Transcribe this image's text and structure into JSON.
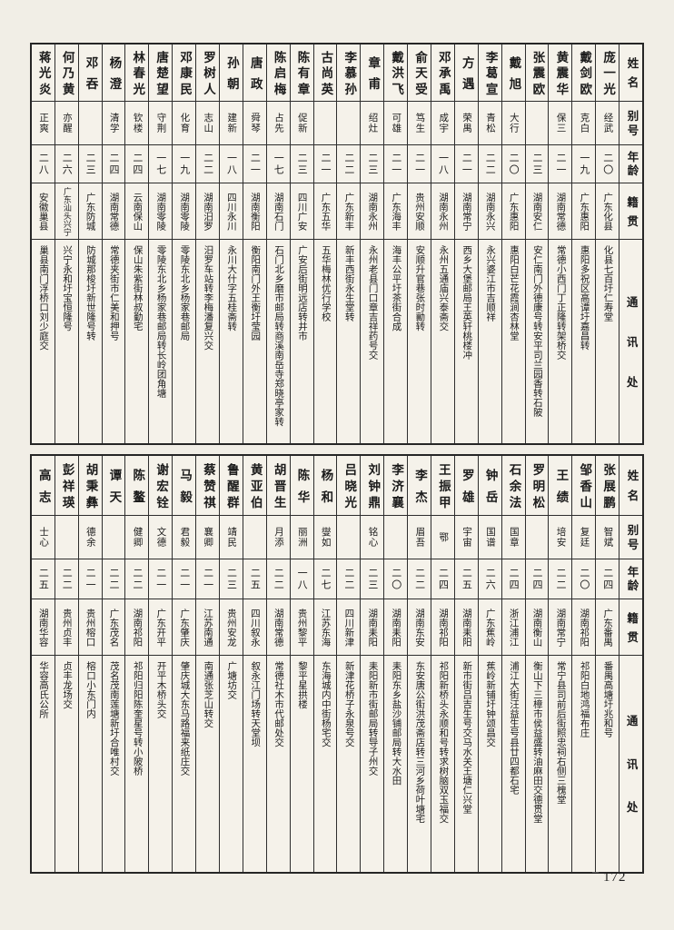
{
  "page": {
    "number": "172"
  },
  "headers": {
    "name": "姓名",
    "alias": "别号",
    "age": "年龄",
    "origin": "籍贯",
    "address": "通讯处"
  },
  "tables": [
    {
      "people": [
        {
          "name": "庞一光",
          "alias": "经武",
          "age": "二〇",
          "origin": "广东化县",
          "address": "化县七百圩仁寿堂"
        },
        {
          "name": "戴剑欧",
          "alias": "克白",
          "age": "一九",
          "origin": "广东惠阳",
          "address": "惠阳多祝区高谭圩嘉昌转"
        },
        {
          "name": "黄震华",
          "alias": "保三",
          "age": "二一",
          "origin": "湖南常德",
          "address": "常德小西门丁正隆转架桥交"
        },
        {
          "name": "张震欧",
          "alias": "",
          "age": "二三",
          "origin": "湖南安仁",
          "address": "安仁南门外德康号转安平司兰园香转石陂"
        },
        {
          "name": "戴旭",
          "alias": "大行",
          "age": "二〇",
          "origin": "广东惠阳",
          "address": "惠阳白芒花霞涧杏林堂"
        },
        {
          "name": "李葛宣",
          "alias": "青松",
          "age": "二二",
          "origin": "湖南永兴",
          "address": "永兴婆江市吉顺祥"
        },
        {
          "name": "方遇",
          "alias": "荣禺",
          "age": "二一",
          "origin": "湖南常宁",
          "address": "西乡大堡邮局王英轩桃楼冲"
        },
        {
          "name": "邓承禹",
          "alias": "成宇",
          "age": "一八",
          "origin": "湖南永州",
          "address": "永州五通庙兴泰斋交"
        },
        {
          "name": "俞天受",
          "alias": "笃生",
          "age": "二一",
          "origin": "贵州安顺",
          "address": "安顺升官巷张时勷转"
        },
        {
          "name": "戴洪飞",
          "alias": "可雄",
          "age": "二一",
          "origin": "广东海丰",
          "address": "海丰公平圩茶街合成"
        },
        {
          "name": "章甫",
          "alias": "绍灶",
          "age": "二三",
          "origin": "湖南永州",
          "address": "永州老县门口章吉祥药号交"
        },
        {
          "name": "李慕孙",
          "alias": "",
          "age": "二二",
          "origin": "广东新丰",
          "address": "新丰西街永生堂转"
        },
        {
          "name": "古尚英",
          "alias": "",
          "age": "二一",
          "origin": "广东五华",
          "address": "五华梅林优行学校"
        },
        {
          "name": "陈有章",
          "alias": "促新",
          "age": "二三",
          "origin": "四川广安",
          "address": "广安后街明远店转井市"
        },
        {
          "name": "陈启梅",
          "alias": "占先",
          "age": "一七",
          "origin": "湖南石门",
          "address": "石门北乡磨市邮局转商溪南岳寺郑晓亭家转"
        },
        {
          "name": "唐政",
          "alias": "舜琴",
          "age": "二一",
          "origin": "湖南衡阳",
          "address": "衡阳南门外王衡圩莹园"
        },
        {
          "name": "孙朝",
          "alias": "建新",
          "age": "一八",
          "origin": "四川永川",
          "address": "永川大什字五桂斋转"
        },
        {
          "name": "罗树人",
          "alias": "志山",
          "age": "二二",
          "origin": "湖南汨罗",
          "address": "汨罗车站转李梅潘复兴交"
        },
        {
          "name": "邓康民",
          "alias": "化育",
          "age": "一九",
          "origin": "湖南零陵",
          "address": "零陵东北乡杨家巷邮局"
        },
        {
          "name": "唐楚望",
          "alias": "守荆",
          "age": "一七",
          "origin": "湖南零陵",
          "address": "零陵东北乡杨家巷邮局转长岭团角塘"
        },
        {
          "name": "林春光",
          "alias": "钦楼",
          "age": "二四",
          "origin": "云南保山",
          "address": "保山朱紫街林叔勤宅"
        },
        {
          "name": "杨澄",
          "alias": "清学",
          "age": "二四",
          "origin": "湖南常德",
          "address": "常德夹街市仁美和押号"
        },
        {
          "name": "邓吞",
          "alias": "",
          "age": "二三",
          "origin": "广东防城",
          "address": "防城那梭圩新世隆号转"
        },
        {
          "name": "何乃黄",
          "alias": "亦醒",
          "age": "二六",
          "origin": "广东汕头兴宁",
          "address": "兴宁永和圩宝恒隆号"
        },
        {
          "name": "蒋光炎",
          "alias": "正爽",
          "age": "二八",
          "origin": "安徽巢县",
          "address": "巢县南门浮桥口刘少庭交"
        }
      ]
    },
    {
      "people": [
        {
          "name": "张展鹏",
          "alias": "智斌",
          "age": "二四",
          "origin": "广东番禺",
          "address": "番禺高塘圩兆和号"
        },
        {
          "name": "邹香山",
          "alias": "复廷",
          "age": "二〇",
          "origin": "湖南祁阳",
          "address": "祁阳白地鸿福布庄"
        },
        {
          "name": "王绩",
          "alias": "培安",
          "age": "二二",
          "origin": "湖南常宁",
          "address": "常宁县司前后街照忠祠右侧三槐堂"
        },
        {
          "name": "罗明松",
          "alias": "",
          "age": "二四",
          "origin": "湖南衡山",
          "address": "衡山下三樟市侯益盛转油麻田交德贯堂"
        },
        {
          "name": "石余法",
          "alias": "国章",
          "age": "二四",
          "origin": "浙江浦江",
          "address": "浦江大街汪益生号县廿四都石宅"
        },
        {
          "name": "钟岳",
          "alias": "国谱",
          "age": "二六",
          "origin": "广东蕉岭",
          "address": "蕉岭新铺圩钟颂昌交"
        },
        {
          "name": "罗雄",
          "alias": "宇宙",
          "age": "二五",
          "origin": "湖南耒阳",
          "address": "新市街吕吉生号交马水关王塘仁兴堂"
        },
        {
          "name": "王振甲",
          "alias": "鄂",
          "age": "二四",
          "origin": "湖南祁阳",
          "address": "祁阳新桥头永顺和号转求树脑双玉福交"
        },
        {
          "name": "李杰",
          "alias": "眉吾",
          "age": "二二",
          "origin": "湖南东安",
          "address": "东安唐公街洪茂斋店转三河乡荷叶塘宅"
        },
        {
          "name": "李济襄",
          "alias": "",
          "age": "二〇",
          "origin": "湖南耒阳",
          "address": "耒阳东乡盐沙铺邮局转大水田"
        },
        {
          "name": "刘钟鼎",
          "alias": "铭心",
          "age": "二三",
          "origin": "湖南耒阳",
          "address": "耒阳新市街邮局转导子州交"
        },
        {
          "name": "吕晓光",
          "alias": "",
          "age": "二二",
          "origin": "四川新津",
          "address": "新津花桥子永泉号交"
        },
        {
          "name": "杨和",
          "alias": "燮如",
          "age": "二七",
          "origin": "江苏东海",
          "address": "东海城内中街杨宅交"
        },
        {
          "name": "陈华",
          "alias": "丽洲",
          "age": "一八",
          "origin": "贵州黎平",
          "address": "黎平星拱楼"
        },
        {
          "name": "胡晋生",
          "alias": "月添",
          "age": "二二",
          "origin": "湖南常德",
          "address": "常德社木市代邮处交"
        },
        {
          "name": "黄亚伯",
          "alias": "",
          "age": "二五",
          "origin": "四川叙永",
          "address": "叙永江门场转天堂坝"
        },
        {
          "name": "鲁醒群",
          "alias": "靖民",
          "age": "二三",
          "origin": "贵州安龙",
          "address": "广塘坊交"
        },
        {
          "name": "蔡赞祺",
          "alias": "襄卿",
          "age": "二一",
          "origin": "江苏南通",
          "address": "南通张芝山转交"
        },
        {
          "name": "马毅",
          "alias": "君毅",
          "age": "二一",
          "origin": "广东肇庆",
          "address": "肇庆城大东马路福来纸庄交"
        },
        {
          "name": "谢宏铨",
          "alias": "文德",
          "age": "二一",
          "origin": "广东开平",
          "address": "开平木桥头交"
        },
        {
          "name": "陈鳌",
          "alias": "健卿",
          "age": "二二",
          "origin": "湖南祁阳",
          "address": "祁阳归阳陈奎星号转小陂桥"
        },
        {
          "name": "谭天",
          "alias": "",
          "age": "二二",
          "origin": "广东茂名",
          "address": "茂名茂南莲塘新圩合唯村交"
        },
        {
          "name": "胡秉彝",
          "alias": "德余",
          "age": "二一",
          "origin": "贵州榕口",
          "address": "榕口小东门内"
        },
        {
          "name": "彭祥瑛",
          "alias": "",
          "age": "二二",
          "origin": "贵州贞丰",
          "address": "贞丰龙场交"
        },
        {
          "name": "高志",
          "alias": "士心",
          "age": "二五",
          "origin": "湖南华容",
          "address": "华容高氏公所"
        }
      ]
    }
  ]
}
